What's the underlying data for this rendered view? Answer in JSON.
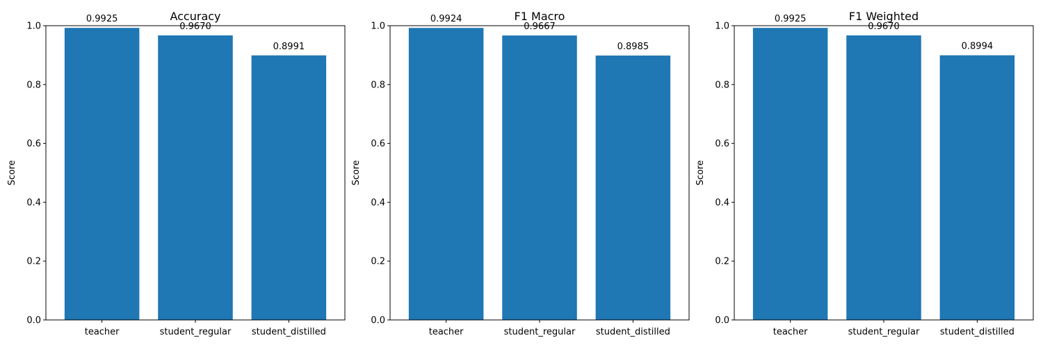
{
  "colors": {
    "bar": "#1f77b4",
    "axis": "#000000",
    "background": "#ffffff"
  },
  "chart_data": [
    {
      "type": "bar",
      "title": "Accuracy",
      "xlabel": "",
      "ylabel": "Score",
      "ylim": [
        0,
        1
      ],
      "yticks": [
        "0.0",
        "0.2",
        "0.4",
        "0.6",
        "0.8",
        "1.0"
      ],
      "categories": [
        "teacher",
        "student_regular",
        "student_distilled"
      ],
      "values": [
        0.9925,
        0.967,
        0.8991
      ],
      "value_labels": [
        "0.9925",
        "0.9670",
        "0.8991"
      ],
      "grid": false
    },
    {
      "type": "bar",
      "title": "F1 Macro",
      "xlabel": "",
      "ylabel": "Score",
      "ylim": [
        0,
        1
      ],
      "yticks": [
        "0.0",
        "0.2",
        "0.4",
        "0.6",
        "0.8",
        "1.0"
      ],
      "categories": [
        "teacher",
        "student_regular",
        "student_distilled"
      ],
      "values": [
        0.9924,
        0.9667,
        0.8985
      ],
      "value_labels": [
        "0.9924",
        "0.9667",
        "0.8985"
      ],
      "grid": false
    },
    {
      "type": "bar",
      "title": "F1 Weighted",
      "xlabel": "",
      "ylabel": "Score",
      "ylim": [
        0,
        1
      ],
      "yticks": [
        "0.0",
        "0.2",
        "0.4",
        "0.6",
        "0.8",
        "1.0"
      ],
      "categories": [
        "teacher",
        "student_regular",
        "student_distilled"
      ],
      "values": [
        0.9925,
        0.967,
        0.8994
      ],
      "value_labels": [
        "0.9925",
        "0.9670",
        "0.8994"
      ],
      "grid": false
    }
  ]
}
